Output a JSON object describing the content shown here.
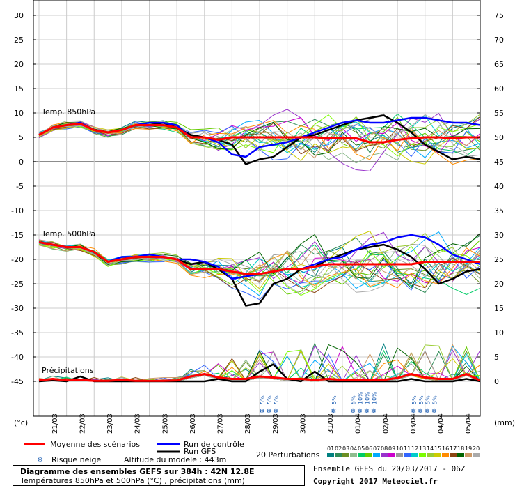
{
  "chart_data": {
    "type": "line",
    "title": "Diagramme des ensembles GEFS sur 384h : 42N 12.8E",
    "subtitle": "Températures 850hPa et 500hPa (°C) , précipitations (mm)",
    "left_axis_unit": "(°c)",
    "right_axis_unit": "(mm)",
    "left_ticks": [
      30,
      25,
      20,
      15,
      10,
      5,
      0,
      -5,
      -10,
      -15,
      -20,
      -25,
      -30,
      -35,
      -40,
      -45
    ],
    "right_ticks": [
      75,
      70,
      65,
      60,
      55,
      50,
      45,
      40,
      35,
      30,
      25,
      20,
      15,
      10,
      5,
      0
    ],
    "x_dates": [
      "21/03",
      "22/03",
      "23/03",
      "24/03",
      "25/03",
      "26/03",
      "27/03",
      "28/03",
      "29/03",
      "30/03",
      "31/03",
      "01/04",
      "02/04",
      "03/04",
      "04/04",
      "05/04"
    ],
    "x_range_days": [
      0,
      16
    ],
    "ylim_temperature": [
      -45,
      30
    ],
    "panels": {
      "t850": "Temp. 850hPa",
      "t500": "Temp. 500hPa",
      "precip": "Précipitations"
    },
    "series_t850": [
      {
        "name": "Moyenne des scénarios",
        "color": "#ff0000",
        "x": [
          0,
          0.5,
          1,
          1.5,
          2,
          2.5,
          3,
          3.5,
          4,
          4.5,
          5,
          5.5,
          6,
          6.5,
          7,
          7.5,
          8,
          8.5,
          9,
          9.5,
          10,
          10.5,
          11,
          11.5,
          12,
          12.5,
          13,
          13.5,
          14,
          14.5,
          15,
          15.5,
          16
        ],
        "y": [
          5.5,
          7,
          7.5,
          7.8,
          6.5,
          6,
          6.5,
          7.5,
          7.5,
          7.5,
          7,
          5,
          5,
          4.5,
          5,
          5,
          5,
          5,
          5,
          5,
          5,
          4.8,
          4.8,
          4.8,
          4,
          4,
          4.5,
          4.8,
          5,
          5,
          4.8,
          5,
          5
        ]
      },
      {
        "name": "Run de contrôle",
        "color": "#0000ff",
        "x": [
          0,
          0.5,
          1,
          1.5,
          2,
          2.5,
          3,
          3.5,
          4,
          4.5,
          5,
          5.5,
          6,
          6.5,
          7,
          7.5,
          8,
          8.5,
          9,
          9.5,
          10,
          10.5,
          11,
          11.5,
          12,
          12.5,
          13,
          13.5,
          14,
          14.5,
          15,
          15.5,
          16
        ],
        "y": [
          5.5,
          7,
          7.5,
          8,
          6.5,
          6,
          6.5,
          7.5,
          8,
          8,
          7.5,
          5,
          5,
          4,
          1.5,
          1,
          3,
          3.5,
          4,
          5,
          6,
          7,
          8,
          8.5,
          8,
          8,
          8.5,
          9,
          9,
          8.5,
          8,
          8,
          7.5
        ]
      },
      {
        "name": "Run GFS",
        "color": "#000000",
        "x": [
          0,
          0.5,
          1,
          1.5,
          2,
          2.5,
          3,
          3.5,
          4,
          4.5,
          5,
          5.5,
          6,
          6.5,
          7,
          7.5,
          8,
          8.5,
          9,
          9.5,
          10,
          10.5,
          11,
          11.5,
          12,
          12.5,
          13,
          13.5,
          14,
          14.5,
          15,
          15.5,
          16
        ],
        "y": [
          5.5,
          7,
          7.5,
          8,
          6.5,
          6,
          6.5,
          7.5,
          7.5,
          8,
          7,
          5.5,
          5,
          4.5,
          3.5,
          -0.5,
          0.5,
          1,
          3,
          5,
          5.5,
          6.5,
          7.5,
          8.5,
          9,
          9.5,
          8,
          6,
          3.5,
          2,
          0.5,
          1,
          0.5
        ]
      }
    ],
    "series_t500": [
      {
        "name": "Moyenne des scénarios",
        "color": "#ff0000",
        "x": [
          0,
          0.5,
          1,
          1.5,
          2,
          2.5,
          3,
          3.5,
          4,
          4.5,
          5,
          5.5,
          6,
          6.5,
          7,
          7.5,
          8,
          8.5,
          9,
          9.5,
          10,
          10.5,
          11,
          11.5,
          12,
          12.5,
          13,
          13.5,
          14,
          14.5,
          15,
          15.5,
          16
        ],
        "y": [
          -16.5,
          -17,
          -17.5,
          -17.5,
          -18.5,
          -20.5,
          -20,
          -19.5,
          -19.5,
          -19.5,
          -20,
          -22,
          -22,
          -22,
          -22.5,
          -23,
          -23,
          -22.5,
          -22,
          -22,
          -21.5,
          -21,
          -21,
          -21,
          -21,
          -21,
          -21,
          -21,
          -20.5,
          -20.5,
          -20.5,
          -20.5,
          -20.5
        ]
      },
      {
        "name": "Run de contrôle",
        "color": "#0000ff",
        "x": [
          0,
          0.5,
          1,
          1.5,
          2,
          2.5,
          3,
          3.5,
          4,
          4.5,
          5,
          5.5,
          6,
          6.5,
          7,
          7.5,
          8,
          8.5,
          9,
          9.5,
          10,
          10.5,
          11,
          11.5,
          12,
          12.5,
          13,
          13.5,
          14,
          14.5,
          15,
          15.5,
          16
        ],
        "y": [
          -16.5,
          -17,
          -17.5,
          -17.5,
          -18.5,
          -20.5,
          -19.5,
          -19.5,
          -19,
          -19.5,
          -20,
          -20,
          -20.5,
          -21.5,
          -24,
          -23.5,
          -23,
          -22.5,
          -22,
          -22,
          -21,
          -20,
          -19.5,
          -18,
          -17,
          -16.5,
          -15.5,
          -15,
          -15.5,
          -17,
          -19,
          -20,
          -21
        ]
      },
      {
        "name": "Run GFS",
        "color": "#000000",
        "x": [
          0,
          0.5,
          1,
          1.5,
          2,
          2.5,
          3,
          3.5,
          4,
          4.5,
          5,
          5.5,
          6,
          6.5,
          7,
          7.5,
          8,
          8.5,
          9,
          9.5,
          10,
          10.5,
          11,
          11.5,
          12,
          12.5,
          13,
          13.5,
          14,
          14.5,
          15,
          15.5,
          16
        ],
        "y": [
          -16.5,
          -17,
          -17.5,
          -17.5,
          -18.5,
          -20.5,
          -20,
          -19.5,
          -19.5,
          -19.5,
          -20,
          -21,
          -20.5,
          -22,
          -24,
          -29.5,
          -29,
          -25,
          -24,
          -22,
          -21.5,
          -20,
          -19,
          -18,
          -17.5,
          -17,
          -18,
          -19.5,
          -22,
          -25,
          -24,
          -22.5,
          -22
        ]
      }
    ],
    "series_precip": [
      {
        "name": "Moyenne des scénarios",
        "color": "#ff0000",
        "x": [
          0,
          0.5,
          1,
          1.5,
          2,
          2.5,
          3,
          3.5,
          4,
          4.5,
          5,
          5.5,
          6,
          6.5,
          7,
          7.5,
          8,
          8.5,
          9,
          9.5,
          10,
          10.5,
          11,
          11.5,
          12,
          12.5,
          13,
          13.5,
          14,
          14.5,
          15,
          15.5,
          16
        ],
        "y": [
          0.2,
          0.5,
          0.2,
          0.3,
          0.1,
          0.1,
          0.3,
          0.1,
          0.1,
          0.1,
          0.2,
          1,
          1.5,
          0.8,
          0.5,
          0.5,
          1,
          0.8,
          0.5,
          0.5,
          0.3,
          0.5,
          0.3,
          0.3,
          0.2,
          0.3,
          0.7,
          1.5,
          0.8,
          0.5,
          0.5,
          1.5,
          0.2
        ]
      },
      {
        "name": "Run GFS",
        "color": "#000000",
        "x": [
          0,
          0.5,
          1,
          1.5,
          2,
          2.5,
          3,
          3.5,
          4,
          4.5,
          5,
          5.5,
          6,
          6.5,
          7,
          7.5,
          8,
          8.5,
          9,
          9.5,
          10,
          10.5,
          11,
          11.5,
          12,
          12.5,
          13,
          13.5,
          14,
          14.5,
          15,
          15.5,
          16
        ],
        "y": [
          0,
          0.2,
          0,
          1,
          0,
          0,
          0,
          0,
          0,
          0,
          0,
          0,
          0,
          0.5,
          0,
          0,
          2,
          3.5,
          0.5,
          0,
          2,
          0,
          0,
          0,
          0,
          0,
          0,
          0.5,
          0,
          0,
          0,
          0.5,
          0
        ]
      }
    ],
    "snow_markers": [
      {
        "x": 8.1,
        "labels": [
          "5%"
        ]
      },
      {
        "x": 8.35,
        "labels": [
          "5%"
        ]
      },
      {
        "x": 8.6,
        "labels": [
          "5%"
        ]
      },
      {
        "x": 10.7,
        "labels": [
          "5%"
        ]
      },
      {
        "x": 11.4,
        "labels": [
          "5%"
        ]
      },
      {
        "x": 11.65,
        "labels": [
          "10%"
        ]
      },
      {
        "x": 11.9,
        "labels": [
          "10%"
        ]
      },
      {
        "x": 12.15,
        "labels": [
          "10%"
        ]
      },
      {
        "x": 13.6,
        "labels": [
          "5%"
        ]
      },
      {
        "x": 13.85,
        "labels": [
          "5%"
        ]
      },
      {
        "x": 14.1,
        "labels": [
          "5%"
        ]
      },
      {
        "x": 14.35,
        "labels": [
          "5%"
        ]
      }
    ],
    "legend": {
      "mean": "Moyenne des scénarios",
      "control": "Run de contrôle",
      "gfs": "Run GFS",
      "snow": "Risque neige",
      "altitude": "Altitude du modele : 443m",
      "perturbations": "20 Perturbations",
      "pert_numbers": [
        "01",
        "02",
        "03",
        "04",
        "05",
        "06",
        "07",
        "08",
        "09",
        "10",
        "11",
        "12",
        "13",
        "14",
        "15",
        "16",
        "17",
        "18",
        "19",
        "20"
      ],
      "pert_colors": [
        "#008080",
        "#2e8b57",
        "#6b8e23",
        "#8fbc8f",
        "#00cc66",
        "#66cc00",
        "#00aaff",
        "#9932cc",
        "#cc00cc",
        "#999999",
        "#3366ff",
        "#00cccc",
        "#7cfc00",
        "#9acd32",
        "#cccc00",
        "#ff8c00",
        "#8b4513",
        "#006400",
        "#cc9966",
        "#aaaaaa"
      ]
    },
    "colors": {
      "mean": "#ff0000",
      "control": "#0000ff",
      "gfs": "#000000",
      "snow": "#1e5fb4"
    }
  },
  "footer": {
    "title": "Diagramme des ensembles GEFS sur 384h : 42N 12.8E",
    "subtitle": "Températures 850hPa et 500hPa (°C) , précipitations (mm)",
    "ensemble": "Ensemble GEFS du 20/03/2017 - 06Z",
    "copyright": "Copyright 2017 Meteociel.fr"
  }
}
